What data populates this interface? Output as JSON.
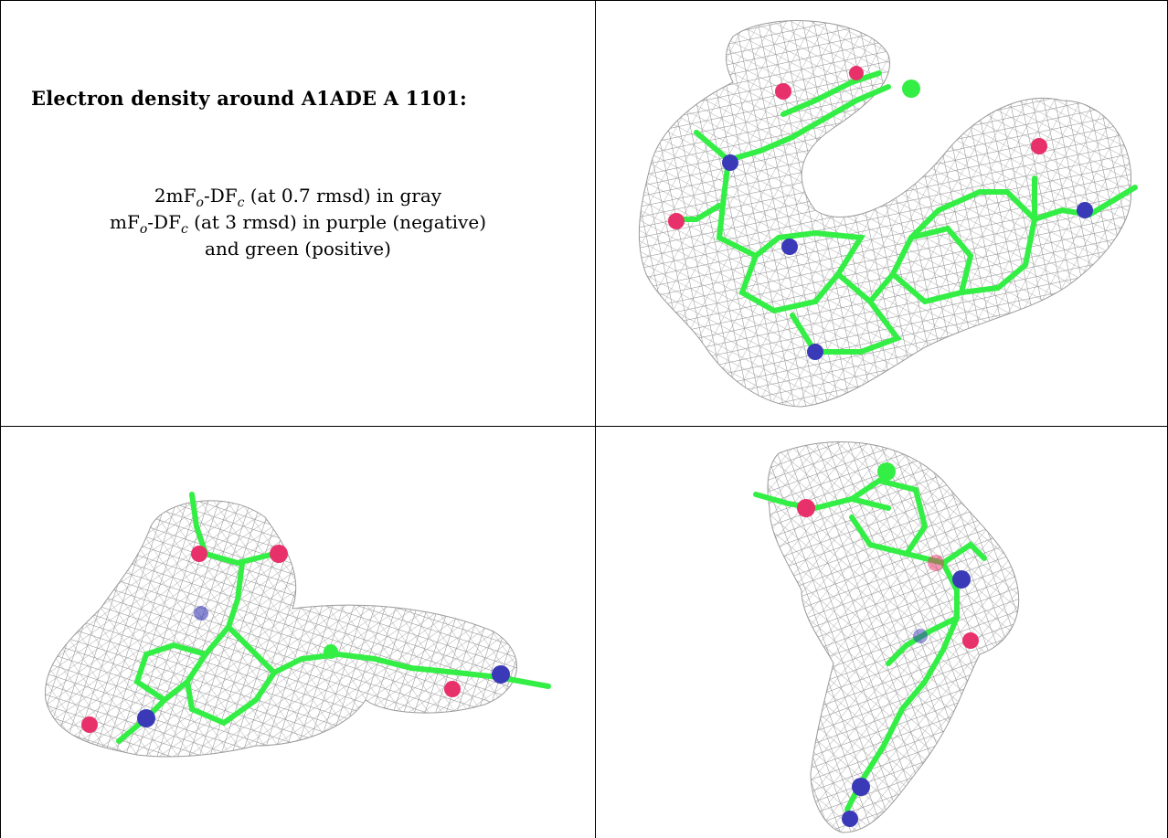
{
  "title": "Electron density around A1ADE A 1101:",
  "legend": {
    "line1": {
      "p1": "2mF",
      "sub1": "o",
      "p2": "-DF",
      "sub2": "c",
      "p3": " (at 0.7 rmsd) in gray"
    },
    "line2": {
      "p1": "mF",
      "sub1": "o",
      "p2": "-DF",
      "sub2": "c",
      "p3": " (at 3 rmsd) in purple (negative)"
    },
    "line3": "and green (positive)"
  },
  "colors": {
    "mesh": "#8a8a8a",
    "carbon": "#33ee44",
    "nitrogen": "#3a3ab8",
    "oxygen": "#e8306a",
    "chlorine": "#33ee44",
    "grid_line": "#000000"
  },
  "views": [
    {
      "name": "top-right view",
      "representation": "sticks-and-mesh"
    },
    {
      "name": "bottom-left view",
      "representation": "sticks-and-mesh"
    },
    {
      "name": "bottom-right view",
      "representation": "sticks-and-mesh"
    }
  ]
}
